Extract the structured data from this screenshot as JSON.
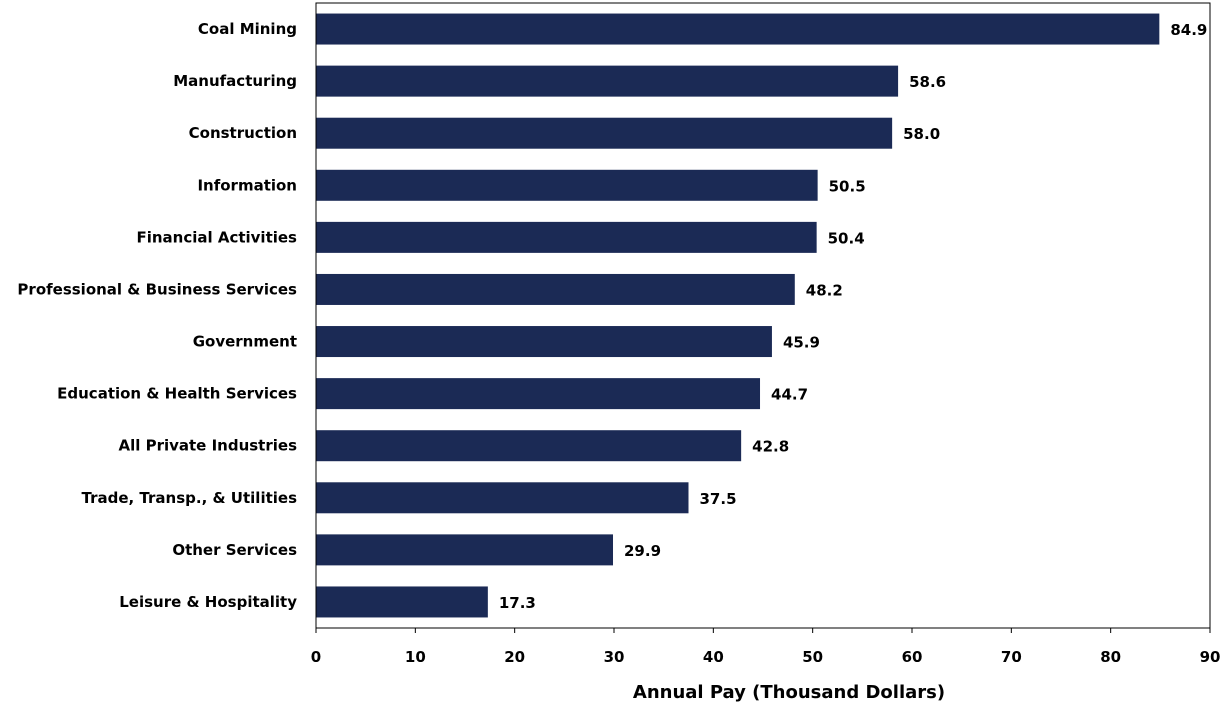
{
  "chart_data": {
    "type": "bar",
    "orientation": "horizontal",
    "categories": [
      "Coal Mining",
      "Manufacturing",
      "Construction",
      "Information",
      "Financial Activities",
      "Professional & Business Services",
      "Government",
      "Education & Health Services",
      "All Private Industries",
      "Trade, Transp., & Utilities",
      "Other Services",
      "Leisure & Hospitality"
    ],
    "values": [
      84.9,
      58.6,
      58.0,
      50.5,
      50.4,
      48.2,
      45.9,
      44.7,
      42.8,
      37.5,
      29.9,
      17.3
    ],
    "value_labels": [
      "84.9",
      "58.6",
      "58.0",
      "50.5",
      "50.4",
      "48.2",
      "45.9",
      "44.7",
      "42.8",
      "37.5",
      "29.9",
      "17.3"
    ],
    "xlabel": "Annual Pay (Thousand Dollars)",
    "ylabel": "",
    "xlim": [
      0,
      90
    ],
    "xticks": [
      "0",
      "10",
      "20",
      "30",
      "40",
      "50",
      "60",
      "70",
      "80",
      "90"
    ],
    "grid": false,
    "legend": "none",
    "bar_color": "#1b2a55"
  }
}
